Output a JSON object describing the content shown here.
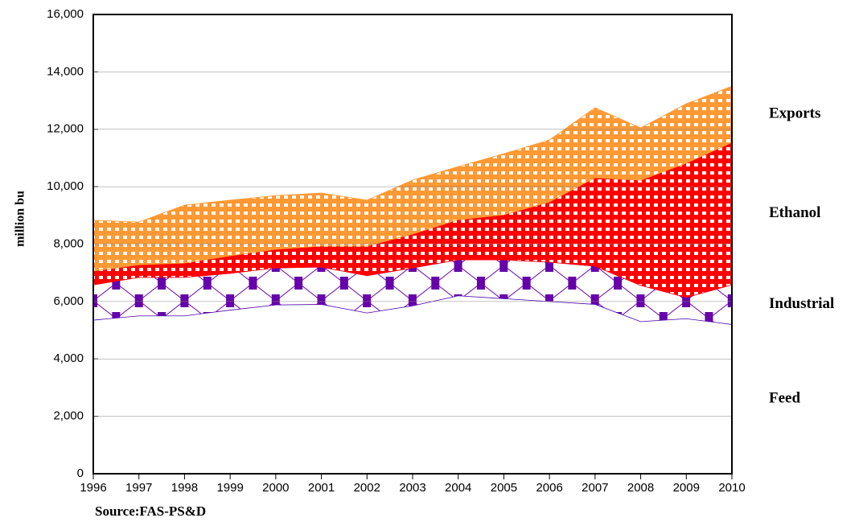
{
  "chart_data": {
    "type": "stacked-area",
    "y_label": "million bu",
    "source": "Source:FAS-PS&D",
    "x": [
      1996,
      1997,
      1998,
      1999,
      2000,
      2001,
      2002,
      2003,
      2004,
      2005,
      2006,
      2007,
      2008,
      2009,
      2010
    ],
    "xlim": [
      1996,
      2010
    ],
    "xticks": [
      1996,
      1997,
      1998,
      1999,
      2000,
      2001,
      2002,
      2003,
      2004,
      2005,
      2006,
      2007,
      2008,
      2009,
      2010
    ],
    "ylim": [
      0,
      16000
    ],
    "yticks": [
      0,
      {
        "value": 2000,
        "label": "2,000"
      },
      {
        "value": 4000,
        "label": "4,000"
      },
      {
        "value": 6000,
        "label": "6,000"
      },
      {
        "value": 8000,
        "label": "8,000"
      },
      {
        "value": 10000,
        "label": "10,000"
      },
      {
        "value": 12000,
        "label": "12,000"
      },
      {
        "value": 14000,
        "label": "14,000"
      },
      {
        "value": 16000,
        "label": "16,000"
      }
    ],
    "grid": true,
    "series": [
      {
        "name": "Feed",
        "color": "#00ffff",
        "values": [
          5350,
          5500,
          5500,
          5700,
          5880,
          5900,
          5600,
          5850,
          6200,
          6100,
          6000,
          5900,
          5300,
          5400,
          5200
        ]
      },
      {
        "name": "Industrial",
        "color": "#6600aa",
        "values": [
          1230,
          1340,
          1340,
          1280,
          1290,
          1300,
          1300,
          1320,
          1250,
          1350,
          1370,
          1330,
          1260,
          740,
          1380
        ]
      },
      {
        "name": "Ethanol",
        "color": "#ff0000",
        "values": [
          480,
          440,
          500,
          610,
          650,
          730,
          1030,
          1180,
          1400,
          1570,
          2100,
          3080,
          3670,
          4680,
          4960
        ]
      },
      {
        "name": "Exports",
        "color": "#ff9933",
        "values": [
          1770,
          1490,
          2020,
          1940,
          1870,
          1850,
          1600,
          1880,
          1850,
          2130,
          2160,
          2440,
          1820,
          2070,
          1960
        ]
      }
    ]
  }
}
